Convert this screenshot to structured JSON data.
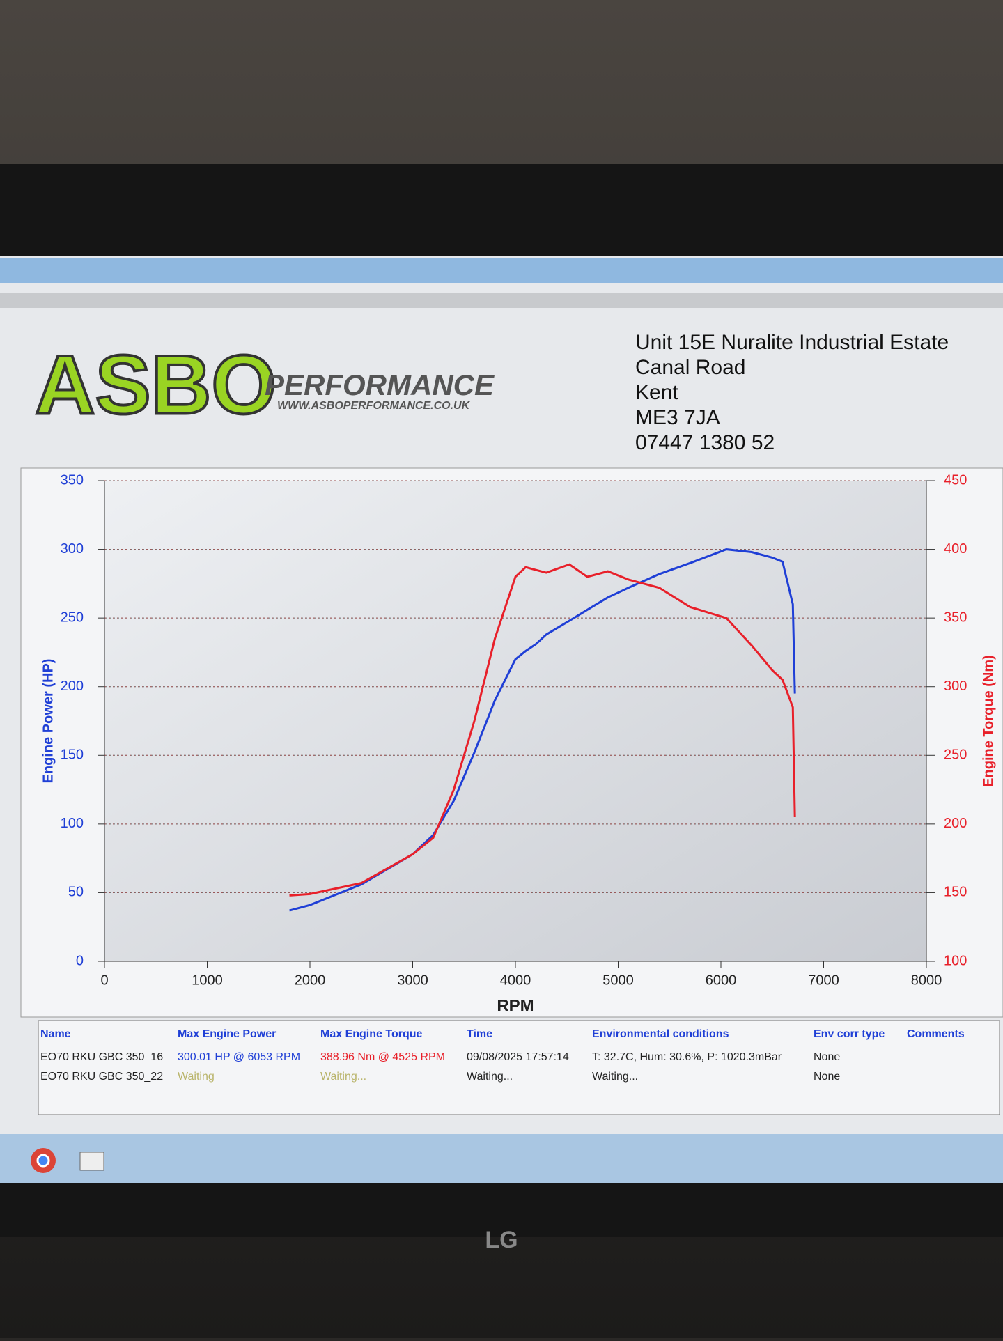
{
  "header": {
    "logo": "ASBO",
    "brand": "PERFORMANCE",
    "website": "WWW.ASBOPERFORMANCE.CO.UK",
    "address": [
      "Unit 15E Nuralite Industrial Estate",
      "Canal Road",
      "Kent",
      "ME3 7JA",
      "07447 1380 52"
    ]
  },
  "chart_data": {
    "type": "line",
    "xlabel": "RPM",
    "ylabel": "Engine Power (HP)",
    "y2label": "Engine Torque (Nm)",
    "x": [
      1800,
      2000,
      2500,
      3000,
      3200,
      3400,
      3600,
      3800,
      4000,
      4100,
      4200,
      4300,
      4525,
      4700,
      4900,
      5100,
      5400,
      5700,
      6053,
      6300,
      6500,
      6600,
      6700,
      6720
    ],
    "series": [
      {
        "name": "Engine Power",
        "color": "#1f3fd6",
        "values": [
          37,
          41,
          56,
          78,
          92,
          117,
          152,
          190,
          220,
          226,
          231,
          238,
          248,
          256,
          265,
          272,
          282,
          290,
          300,
          298,
          294,
          291,
          260,
          195
        ]
      },
      {
        "name": "Engine Torque",
        "color": "#e8202a",
        "axis": "y2",
        "values": [
          148,
          149,
          157,
          178,
          190,
          225,
          275,
          335,
          380,
          387,
          385,
          383,
          389,
          380,
          384,
          378,
          372,
          358,
          350,
          330,
          312,
          305,
          285,
          205
        ]
      }
    ],
    "xlim": [
      0,
      8000
    ],
    "xticks": [
      0,
      1000,
      2000,
      3000,
      4000,
      5000,
      6000,
      7000,
      8000
    ],
    "ylim": [
      0,
      350
    ],
    "yticks": [
      0,
      50,
      100,
      150,
      200,
      250,
      300,
      350
    ],
    "y2lim": [
      100,
      450
    ],
    "y2ticks": [
      100,
      150,
      200,
      250,
      300,
      350,
      400,
      450
    ],
    "grid": true
  },
  "table": {
    "headers": [
      "Name",
      "Max Engine Power",
      "Max Engine Torque",
      "Time",
      "Environmental conditions",
      "Env corr type",
      "Comments"
    ],
    "rows": [
      [
        "EO70 RKU GBC 350_16",
        "300.01 HP @ 6053 RPM",
        "388.96 Nm @ 4525 RPM",
        "09/08/2025 17:57:14",
        "T: 32.7C, Hum: 30.6%, P: 1020.3mBar",
        "None"
      ],
      [
        "EO70 RKU GBC 350_22",
        "Waiting",
        "Waiting...",
        "Waiting...",
        "Waiting...",
        "None"
      ]
    ]
  },
  "monitor": {
    "brand": "LG"
  }
}
